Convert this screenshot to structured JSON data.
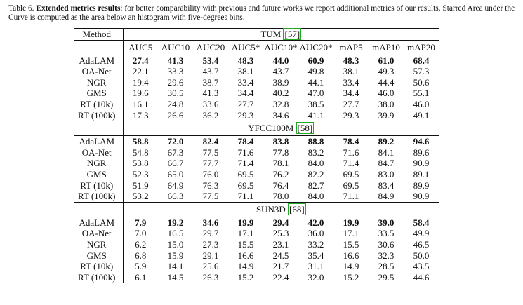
{
  "caption": {
    "label": "Table 6.",
    "title": "Extended metrics results",
    "text": ": for better comparability with previous and future works we report additional metrics of our results. Starred Area under the Curve is computed as the area below an histogram with five-degrees bins."
  },
  "table": {
    "method_header": "Method",
    "columns": [
      "AUC5",
      "AUC10",
      "AUC20",
      "AUC5*",
      "AUC10*",
      "AUC20*",
      "mAP5",
      "mAP10",
      "mAP20"
    ],
    "sections": [
      {
        "name": "TUM",
        "ref": "[57]",
        "rows": [
          {
            "method": "AdaLAM",
            "bold": true,
            "values": [
              "27.4",
              "41.3",
              "53.4",
              "48.3",
              "44.0",
              "60.9",
              "48.3",
              "61.0",
              "68.4"
            ]
          },
          {
            "method": "OA-Net",
            "bold": false,
            "values": [
              "22.1",
              "33.3",
              "43.7",
              "38.1",
              "43.7",
              "49.8",
              "38.1",
              "49.3",
              "57.3"
            ]
          },
          {
            "method": "NGR",
            "bold": false,
            "values": [
              "19.4",
              "29.6",
              "38.7",
              "33.4",
              "38.9",
              "44.1",
              "33.4",
              "44.4",
              "50.6"
            ]
          },
          {
            "method": "GMS",
            "bold": false,
            "values": [
              "19.6",
              "30.5",
              "41.3",
              "34.4",
              "40.2",
              "47.0",
              "34.4",
              "46.0",
              "55.1"
            ]
          },
          {
            "method": "RT (10k)",
            "bold": false,
            "values": [
              "16.1",
              "24.8",
              "33.6",
              "27.7",
              "32.8",
              "38.5",
              "27.7",
              "38.0",
              "46.0"
            ]
          },
          {
            "method": "RT (100k)",
            "bold": false,
            "values": [
              "17.3",
              "26.6",
              "36.2",
              "29.3",
              "34.6",
              "41.1",
              "29.3",
              "39.9",
              "49.1"
            ]
          }
        ]
      },
      {
        "name": "YFCC100M",
        "ref": "[58]",
        "rows": [
          {
            "method": "AdaLAM",
            "bold": true,
            "values": [
              "58.8",
              "72.0",
              "82.4",
              "78.4",
              "83.8",
              "88.8",
              "78.4",
              "89.2",
              "94.6"
            ]
          },
          {
            "method": "OA-Net",
            "bold": false,
            "values": [
              "54.8",
              "67.3",
              "77.5",
              "71.6",
              "77.8",
              "83.2",
              "71.6",
              "84.1",
              "89.6"
            ]
          },
          {
            "method": "NGR",
            "bold": false,
            "values": [
              "53.8",
              "66.7",
              "77.7",
              "71.4",
              "78.1",
              "84.0",
              "71.4",
              "84.7",
              "90.9"
            ]
          },
          {
            "method": "GMS",
            "bold": false,
            "values": [
              "52.3",
              "65.0",
              "76.0",
              "69.5",
              "76.2",
              "82.2",
              "69.5",
              "83.0",
              "89.1"
            ]
          },
          {
            "method": "RT (10k)",
            "bold": false,
            "values": [
              "51.9",
              "64.9",
              "76.3",
              "69.5",
              "76.4",
              "82.7",
              "69.5",
              "83.4",
              "89.9"
            ]
          },
          {
            "method": "RT (100k)",
            "bold": false,
            "values": [
              "53.2",
              "66.3",
              "77.5",
              "71.1",
              "78.0",
              "84.0",
              "71.1",
              "84.9",
              "90.9"
            ]
          }
        ]
      },
      {
        "name": "SUN3D",
        "ref": "[68]",
        "rows": [
          {
            "method": "AdaLAM",
            "bold": true,
            "values": [
              "7.9",
              "19.2",
              "34.6",
              "19.9",
              "29.4",
              "42.0",
              "19.9",
              "39.0",
              "58.4"
            ]
          },
          {
            "method": "OA-Net",
            "bold": false,
            "values": [
              "7.0",
              "16.5",
              "29.7",
              "17.1",
              "25.3",
              "36.0",
              "17.1",
              "33.5",
              "49.9"
            ]
          },
          {
            "method": "NGR",
            "bold": false,
            "values": [
              "6.2",
              "15.0",
              "27.3",
              "15.5",
              "23.1",
              "33.2",
              "15.5",
              "30.6",
              "46.5"
            ]
          },
          {
            "method": "GMS",
            "bold": false,
            "values": [
              "6.8",
              "15.9",
              "29.1",
              "16.6",
              "24.5",
              "35.4",
              "16.6",
              "32.3",
              "50.0"
            ]
          },
          {
            "method": "RT (10k)",
            "bold": false,
            "values": [
              "5.9",
              "14.1",
              "25.6",
              "14.9",
              "21.7",
              "31.1",
              "14.9",
              "28.5",
              "43.5"
            ]
          },
          {
            "method": "RT (100k)",
            "bold": false,
            "values": [
              "6.1",
              "14.5",
              "26.3",
              "15.2",
              "22.4",
              "32.0",
              "15.2",
              "29.5",
              "44.6"
            ]
          }
        ]
      }
    ]
  }
}
